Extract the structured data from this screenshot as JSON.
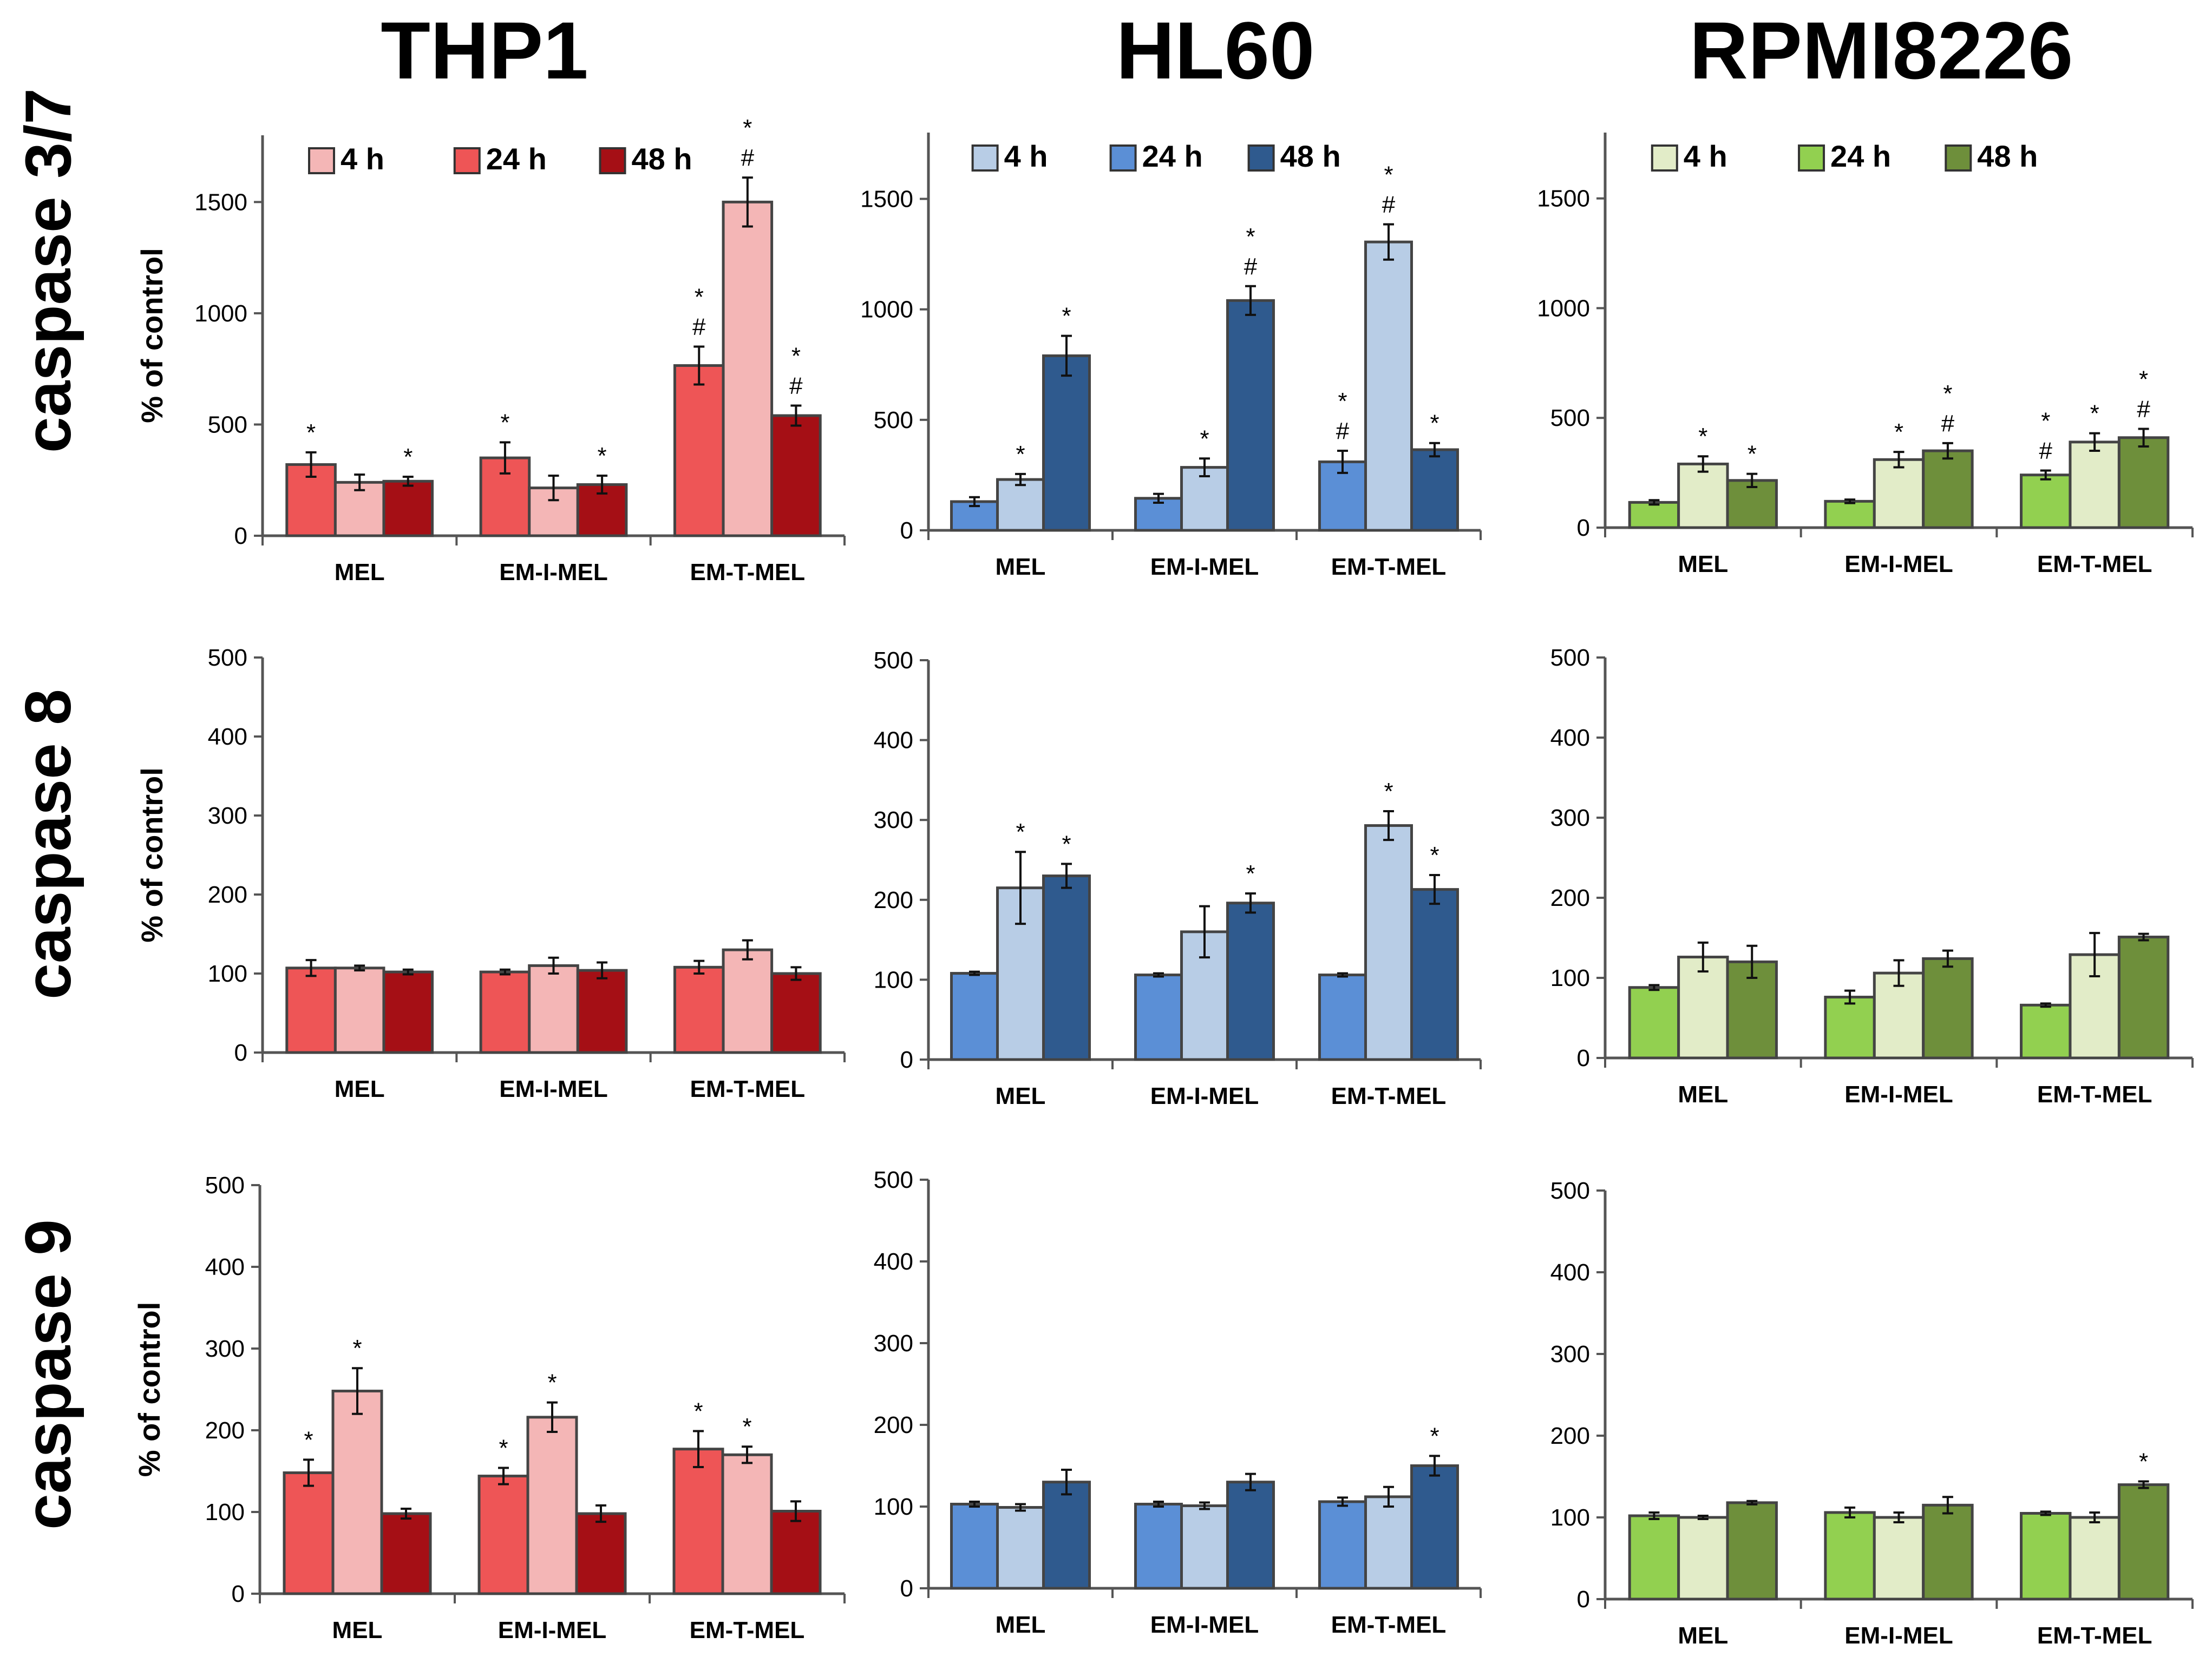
{
  "figure": {
    "column_titles": [
      "THP1",
      "HL60",
      "RPMI8226"
    ],
    "row_titles": [
      "caspase 3/7",
      "caspase 8",
      "caspase 9"
    ],
    "legend_labels": [
      "4 h",
      "24 h",
      "48 h"
    ],
    "ylabel": "% of control"
  },
  "palette": {
    "THP1": {
      "4 h": "#f4b6b6",
      "24 h": "#ee5556",
      "48 h": "#a50f15"
    },
    "HL60": {
      "4 h": "#b8cde6",
      "24 h": "#5b8fd6",
      "48 h": "#2f5a8e"
    },
    "RPMI8226": {
      "4 h": "#e2ecc8",
      "24 h": "#92d050",
      "48 h": "#6e8f3b"
    }
  },
  "chart_data": [
    {
      "type": "bar",
      "cell_line": "THP1",
      "assay": "caspase 3/7",
      "categories": [
        "MEL",
        "EM-I-MEL",
        "EM-T-MEL"
      ],
      "ylabel": "% of control",
      "ylim": [
        0,
        1800
      ],
      "yticks": [
        0,
        500,
        1000,
        1500
      ],
      "legend": "top",
      "series": [
        {
          "name": "24 h",
          "values": [
            320,
            350,
            765
          ],
          "errors": [
            55,
            70,
            85
          ],
          "annotations": [
            "*",
            "*",
            "*\n#"
          ]
        },
        {
          "name": "4 h",
          "values": [
            240,
            215,
            1500
          ],
          "errors": [
            35,
            55,
            110
          ],
          "annotations": [
            "",
            "",
            "*\n#"
          ]
        },
        {
          "name": "48 h",
          "values": [
            245,
            230,
            540
          ],
          "errors": [
            20,
            40,
            45
          ],
          "annotations": [
            "*",
            "*",
            "*\n#"
          ]
        }
      ]
    },
    {
      "type": "bar",
      "cell_line": "HL60",
      "assay": "caspase 3/7",
      "categories": [
        "MEL",
        "EM-I-MEL",
        "EM-T-MEL"
      ],
      "ylabel": "",
      "ylim": [
        0,
        1800
      ],
      "yticks": [
        0,
        500,
        1000,
        1500
      ],
      "legend": "top",
      "series": [
        {
          "name": "24 h",
          "values": [
            130,
            145,
            310
          ],
          "errors": [
            20,
            20,
            50
          ],
          "annotations": [
            "",
            "",
            "*\n#"
          ]
        },
        {
          "name": "4 h",
          "values": [
            230,
            285,
            1305
          ],
          "errors": [
            25,
            40,
            80
          ],
          "annotations": [
            "*",
            "*",
            "*\n#"
          ]
        },
        {
          "name": "48 h",
          "values": [
            790,
            1040,
            365
          ],
          "errors": [
            90,
            65,
            30
          ],
          "annotations": [
            "*",
            "*\n#",
            "*"
          ]
        }
      ]
    },
    {
      "type": "bar",
      "cell_line": "RPMI8226",
      "assay": "caspase 3/7",
      "categories": [
        "MEL",
        "EM-I-MEL",
        "EM-T-MEL"
      ],
      "ylabel": "",
      "ylim": [
        0,
        1800
      ],
      "yticks": [
        0,
        500,
        1000,
        1500
      ],
      "legend": "top",
      "series": [
        {
          "name": "24 h",
          "values": [
            115,
            120,
            240
          ],
          "errors": [
            10,
            8,
            20
          ],
          "annotations": [
            "",
            "",
            "*\n#"
          ]
        },
        {
          "name": "4 h",
          "values": [
            290,
            310,
            390
          ],
          "errors": [
            35,
            35,
            40
          ],
          "annotations": [
            "*",
            "*",
            "*"
          ]
        },
        {
          "name": "48 h",
          "values": [
            215,
            350,
            410
          ],
          "errors": [
            30,
            35,
            40
          ],
          "annotations": [
            "*",
            "*\n#",
            "*\n#"
          ]
        }
      ]
    },
    {
      "type": "bar",
      "cell_line": "THP1",
      "assay": "caspase 8",
      "categories": [
        "MEL",
        "EM-I-MEL",
        "EM-T-MEL"
      ],
      "ylabel": "% of control",
      "ylim": [
        0,
        500
      ],
      "yticks": [
        0,
        100,
        200,
        300,
        400,
        500
      ],
      "legend": "none",
      "series": [
        {
          "name": "24 h",
          "values": [
            107,
            102,
            108
          ],
          "errors": [
            10,
            3,
            8
          ],
          "annotations": [
            "",
            "",
            ""
          ]
        },
        {
          "name": "4 h",
          "values": [
            107,
            110,
            130
          ],
          "errors": [
            3,
            10,
            12
          ],
          "annotations": [
            "",
            "",
            ""
          ]
        },
        {
          "name": "48 h",
          "values": [
            102,
            104,
            100
          ],
          "errors": [
            3,
            10,
            8
          ],
          "annotations": [
            "",
            "",
            ""
          ]
        }
      ]
    },
    {
      "type": "bar",
      "cell_line": "HL60",
      "assay": "caspase 8",
      "categories": [
        "MEL",
        "EM-I-MEL",
        "EM-T-MEL"
      ],
      "ylabel": "",
      "ylim": [
        0,
        500
      ],
      "yticks": [
        0,
        100,
        200,
        300,
        400,
        500
      ],
      "legend": "none",
      "series": [
        {
          "name": "24 h",
          "values": [
            108,
            106,
            106
          ],
          "errors": [
            2,
            2,
            2
          ],
          "annotations": [
            "",
            "",
            ""
          ]
        },
        {
          "name": "4 h",
          "values": [
            215,
            160,
            293
          ],
          "errors": [
            45,
            32,
            18
          ],
          "annotations": [
            "*",
            "",
            "*"
          ]
        },
        {
          "name": "48 h",
          "values": [
            230,
            196,
            213
          ],
          "errors": [
            15,
            12,
            18
          ],
          "annotations": [
            "*",
            "*",
            "*"
          ]
        }
      ]
    },
    {
      "type": "bar",
      "cell_line": "RPMI8226",
      "assay": "caspase 8",
      "categories": [
        "MEL",
        "EM-I-MEL",
        "EM-T-MEL"
      ],
      "ylabel": "",
      "ylim": [
        0,
        500
      ],
      "yticks": [
        0,
        100,
        200,
        300,
        400,
        500
      ],
      "legend": "none",
      "series": [
        {
          "name": "24 h",
          "values": [
            88,
            76,
            66
          ],
          "errors": [
            3,
            8,
            2
          ],
          "annotations": [
            "",
            "",
            ""
          ]
        },
        {
          "name": "4 h",
          "values": [
            126,
            106,
            129
          ],
          "errors": [
            18,
            16,
            27
          ],
          "annotations": [
            "",
            "",
            ""
          ]
        },
        {
          "name": "48 h",
          "values": [
            120,
            124,
            151
          ],
          "errors": [
            20,
            10,
            4
          ],
          "annotations": [
            "",
            "",
            ""
          ]
        }
      ]
    },
    {
      "type": "bar",
      "cell_line": "THP1",
      "assay": "caspase 9",
      "categories": [
        "MEL",
        "EM-I-MEL",
        "EM-T-MEL"
      ],
      "ylabel": "% of control",
      "ylim": [
        0,
        500
      ],
      "yticks": [
        0,
        100,
        200,
        300,
        400,
        500
      ],
      "legend": "none",
      "series": [
        {
          "name": "24 h",
          "values": [
            148,
            144,
            177
          ],
          "errors": [
            16,
            10,
            22
          ],
          "annotations": [
            "*",
            "*",
            "*"
          ]
        },
        {
          "name": "4 h",
          "values": [
            248,
            216,
            170
          ],
          "errors": [
            28,
            18,
            10
          ],
          "annotations": [
            "*",
            "*",
            "*"
          ]
        },
        {
          "name": "48 h",
          "values": [
            98,
            98,
            101
          ],
          "errors": [
            6,
            10,
            12
          ],
          "annotations": [
            "",
            "",
            ""
          ]
        }
      ]
    },
    {
      "type": "bar",
      "cell_line": "HL60",
      "assay": "caspase 9",
      "categories": [
        "MEL",
        "EM-I-MEL",
        "EM-T-MEL"
      ],
      "ylabel": "",
      "ylim": [
        0,
        500
      ],
      "yticks": [
        0,
        100,
        200,
        300,
        400,
        500
      ],
      "legend": "none",
      "series": [
        {
          "name": "24 h",
          "values": [
            103,
            103,
            106
          ],
          "errors": [
            3,
            3,
            5
          ],
          "annotations": [
            "",
            "",
            ""
          ]
        },
        {
          "name": "4 h",
          "values": [
            99,
            101,
            112
          ],
          "errors": [
            4,
            4,
            12
          ],
          "annotations": [
            "",
            "",
            ""
          ]
        },
        {
          "name": "48 h",
          "values": [
            130,
            130,
            150
          ],
          "errors": [
            15,
            10,
            12
          ],
          "annotations": [
            "",
            "",
            "*"
          ]
        }
      ]
    },
    {
      "type": "bar",
      "cell_line": "RPMI8226",
      "assay": "caspase 9",
      "categories": [
        "MEL",
        "EM-I-MEL",
        "EM-T-MEL"
      ],
      "ylabel": "",
      "ylim": [
        0,
        500
      ],
      "yticks": [
        0,
        100,
        200,
        300,
        400,
        500
      ],
      "legend": "none",
      "series": [
        {
          "name": "24 h",
          "values": [
            102,
            106,
            105
          ],
          "errors": [
            4,
            6,
            2
          ],
          "annotations": [
            "",
            "",
            ""
          ]
        },
        {
          "name": "4 h",
          "values": [
            100,
            100,
            100
          ],
          "errors": [
            2,
            6,
            6
          ],
          "annotations": [
            "",
            "",
            ""
          ]
        },
        {
          "name": "48 h",
          "values": [
            118,
            115,
            140
          ],
          "errors": [
            2,
            10,
            4
          ],
          "annotations": [
            "",
            "",
            "*"
          ]
        }
      ]
    }
  ]
}
